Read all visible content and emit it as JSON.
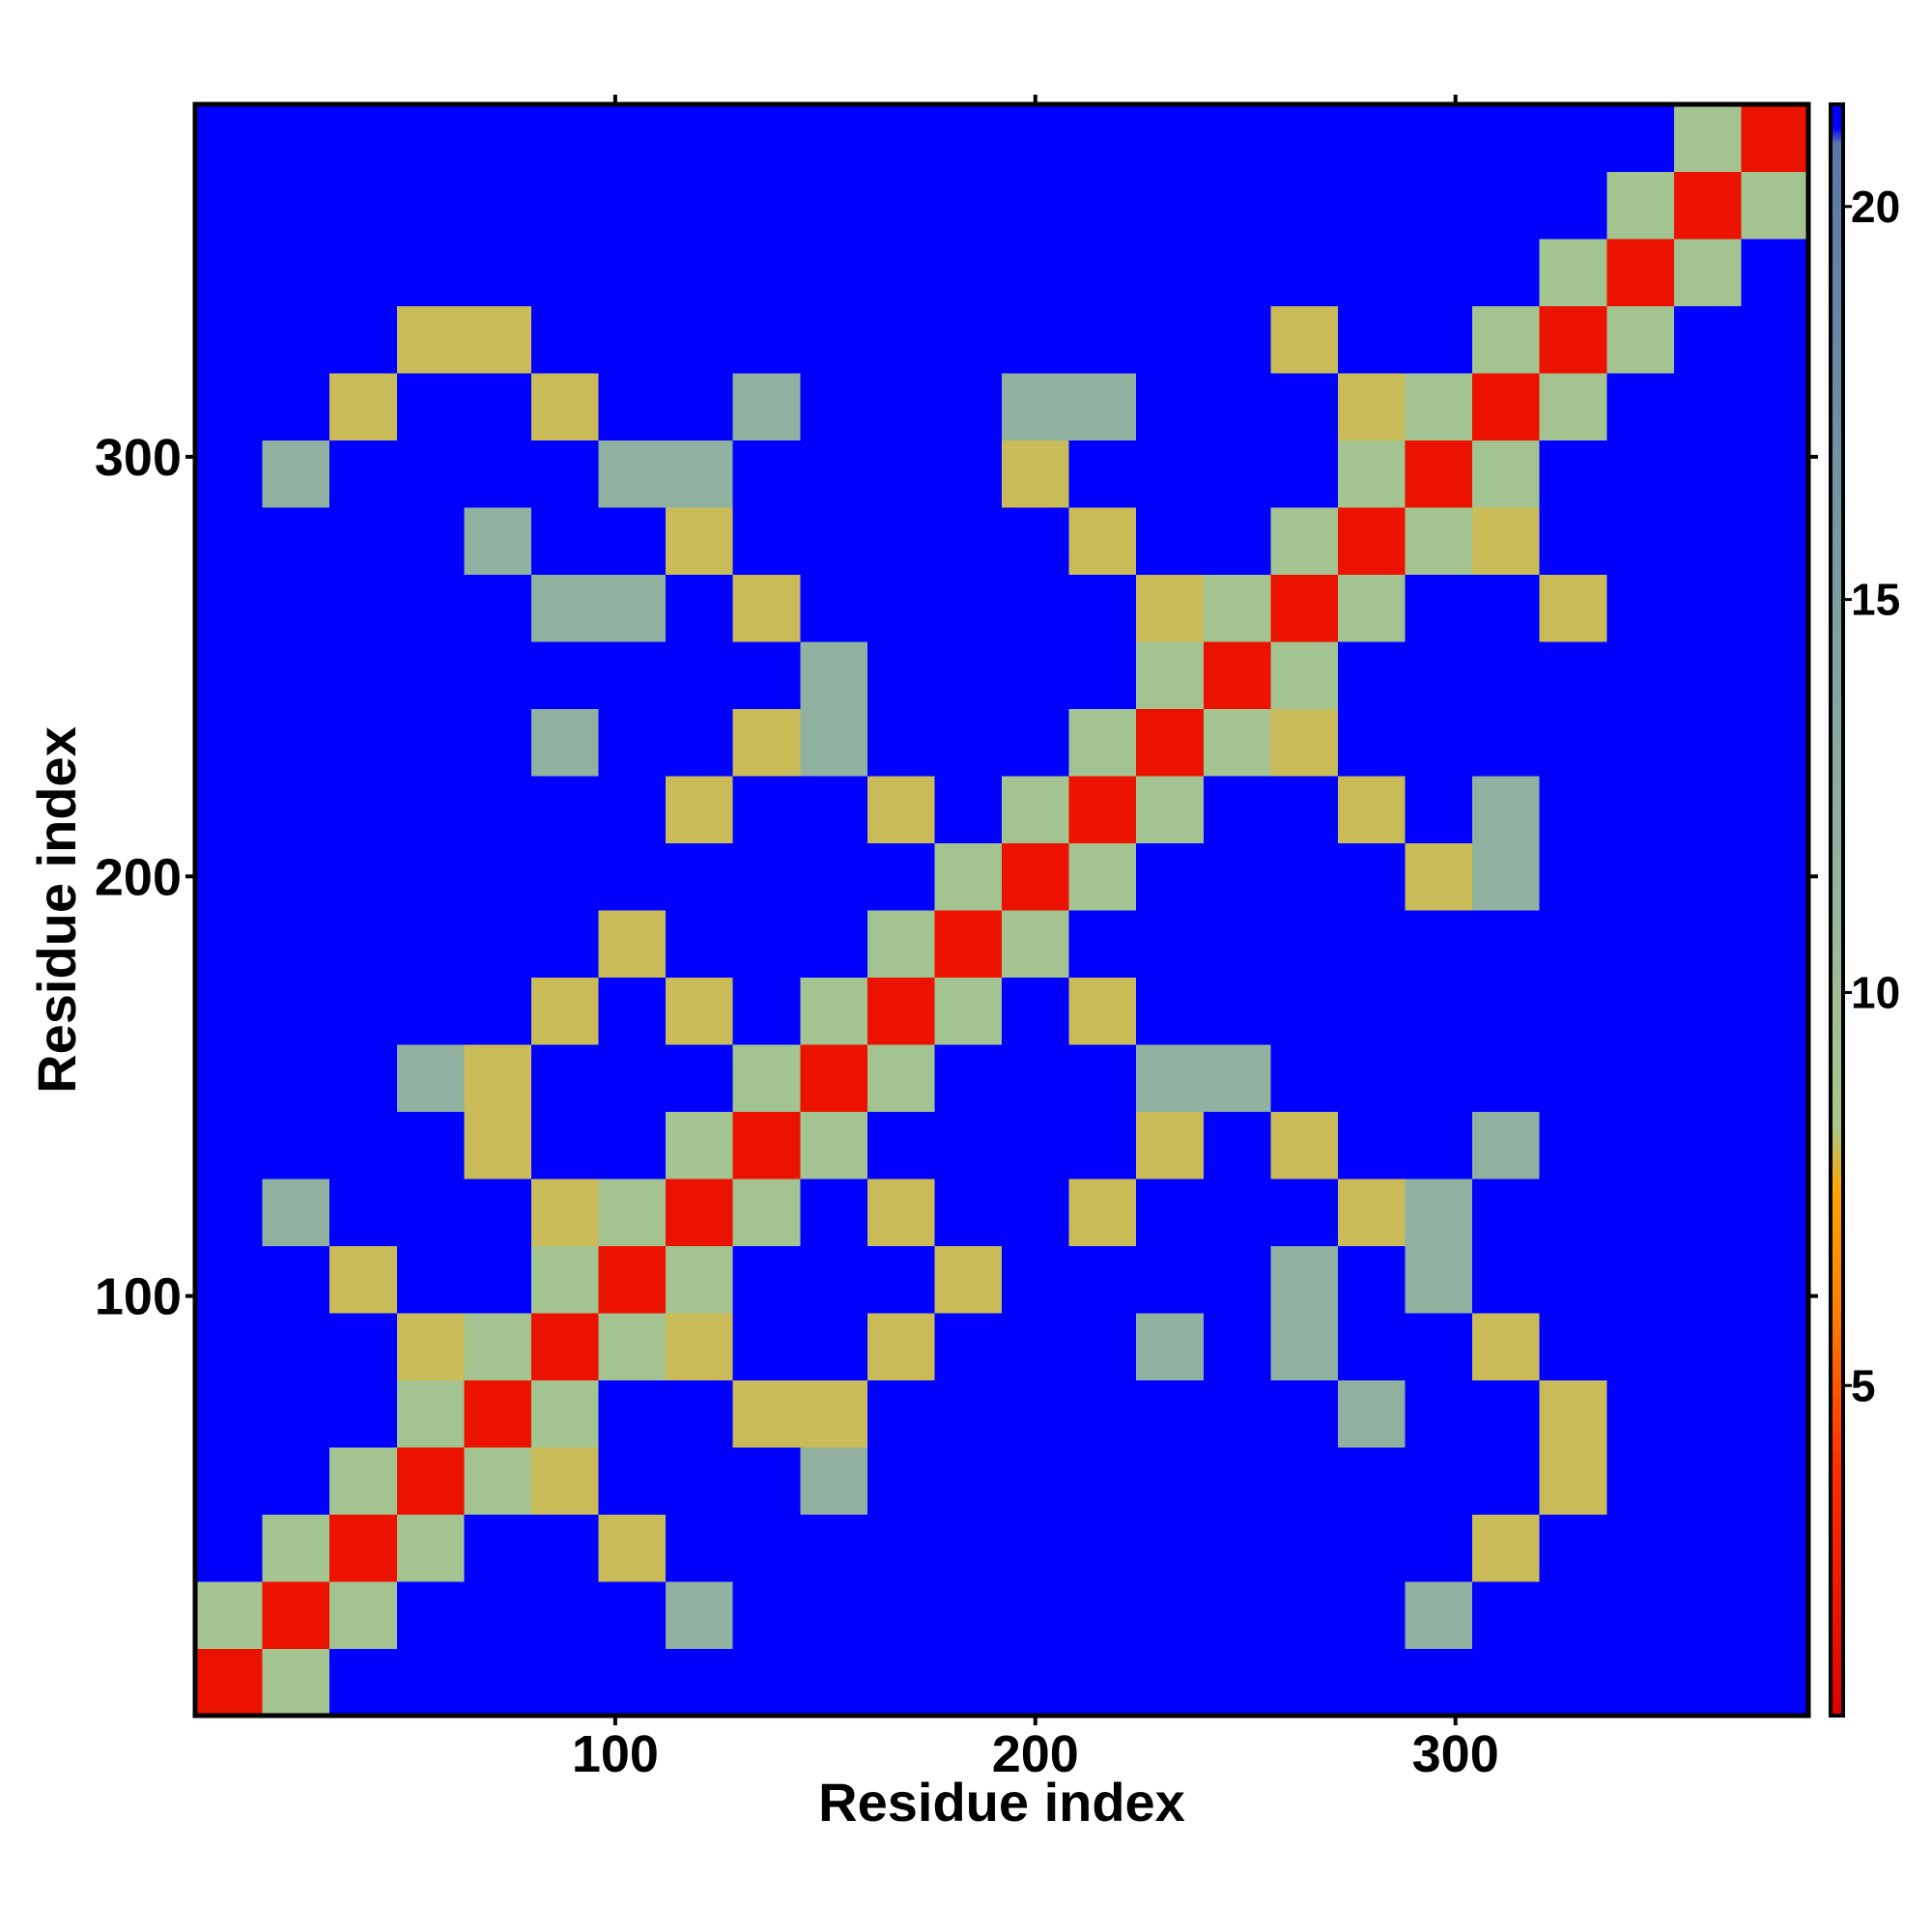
{
  "chart_data": {
    "type": "heatmap",
    "xlabel": "Residue index",
    "ylabel": "Residue index",
    "x": [
      8,
      24,
      40,
      56,
      72,
      88,
      104,
      120,
      136,
      152,
      168,
      184,
      200,
      216,
      232,
      248,
      264,
      280,
      296,
      312,
      328,
      344,
      360,
      376
    ],
    "y": [
      8,
      24,
      40,
      56,
      72,
      88,
      104,
      120,
      136,
      152,
      168,
      184,
      200,
      216,
      232,
      248,
      264,
      280,
      296,
      312,
      328,
      344,
      360,
      376
    ],
    "values": [
      [
        2,
        9,
        21,
        21,
        21,
        21,
        21,
        21,
        21,
        21,
        21,
        21,
        21,
        21,
        21,
        21,
        21,
        21,
        21,
        21,
        21,
        21,
        21,
        21
      ],
      [
        9,
        2,
        9,
        21,
        21,
        21,
        21,
        12,
        21,
        21,
        21,
        21,
        21,
        21,
        21,
        21,
        21,
        21,
        12,
        21,
        21,
        21,
        21,
        21
      ],
      [
        21,
        9,
        2,
        9,
        21,
        21,
        8,
        21,
        21,
        21,
        21,
        21,
        21,
        21,
        21,
        21,
        21,
        21,
        21,
        8,
        21,
        21,
        21,
        21
      ],
      [
        21,
        21,
        9,
        2,
        9,
        8,
        21,
        21,
        21,
        12,
        21,
        21,
        21,
        21,
        21,
        21,
        21,
        21,
        21,
        21,
        8,
        21,
        21,
        21
      ],
      [
        21,
        21,
        21,
        9,
        2,
        9,
        21,
        21,
        8,
        8,
        21,
        21,
        21,
        21,
        21,
        21,
        21,
        12,
        21,
        21,
        8,
        21,
        21,
        21
      ],
      [
        21,
        21,
        21,
        8,
        9,
        2,
        9,
        8,
        21,
        21,
        8,
        21,
        21,
        21,
        12,
        21,
        12,
        21,
        21,
        8,
        21,
        21,
        21,
        21
      ],
      [
        21,
        21,
        8,
        21,
        21,
        9,
        2,
        9,
        21,
        21,
        21,
        8,
        21,
        21,
        21,
        21,
        12,
        21,
        12,
        21,
        21,
        21,
        21,
        21
      ],
      [
        21,
        12,
        21,
        21,
        21,
        8,
        9,
        2,
        9,
        21,
        8,
        21,
        21,
        8,
        21,
        21,
        21,
        8,
        12,
        21,
        21,
        21,
        21,
        21
      ],
      [
        21,
        21,
        21,
        21,
        8,
        21,
        21,
        9,
        2,
        9,
        21,
        21,
        21,
        21,
        8,
        21,
        8,
        21,
        21,
        12,
        21,
        21,
        21,
        21
      ],
      [
        21,
        21,
        21,
        12,
        8,
        21,
        21,
        21,
        9,
        2,
        9,
        21,
        21,
        21,
        12,
        12,
        21,
        21,
        21,
        21,
        21,
        21,
        21,
        21
      ],
      [
        21,
        21,
        21,
        21,
        21,
        8,
        21,
        8,
        21,
        9,
        2,
        9,
        21,
        8,
        21,
        21,
        21,
        21,
        21,
        21,
        21,
        21,
        21,
        21
      ],
      [
        21,
        21,
        21,
        21,
        21,
        21,
        8,
        21,
        21,
        21,
        9,
        2,
        9,
        21,
        21,
        21,
        21,
        21,
        21,
        21,
        21,
        21,
        21,
        21
      ],
      [
        21,
        21,
        21,
        21,
        21,
        21,
        21,
        21,
        21,
        21,
        21,
        9,
        2,
        9,
        21,
        21,
        21,
        21,
        8,
        12,
        21,
        21,
        21,
        21
      ],
      [
        21,
        21,
        21,
        21,
        21,
        21,
        21,
        8,
        21,
        21,
        8,
        21,
        9,
        2,
        9,
        21,
        21,
        8,
        21,
        12,
        21,
        21,
        21,
        21
      ],
      [
        21,
        21,
        21,
        21,
        21,
        12,
        21,
        21,
        8,
        12,
        21,
        21,
        21,
        9,
        2,
        9,
        8,
        21,
        21,
        21,
        21,
        21,
        21,
        21
      ],
      [
        21,
        21,
        21,
        21,
        21,
        21,
        21,
        21,
        21,
        12,
        21,
        21,
        21,
        21,
        9,
        2,
        9,
        21,
        21,
        21,
        21,
        21,
        21,
        21
      ],
      [
        21,
        21,
        21,
        21,
        21,
        12,
        12,
        21,
        8,
        21,
        21,
        21,
        21,
        21,
        8,
        9,
        2,
        9,
        21,
        21,
        8,
        21,
        21,
        21
      ],
      [
        21,
        21,
        21,
        21,
        12,
        21,
        21,
        8,
        21,
        21,
        21,
        21,
        21,
        8,
        21,
        21,
        9,
        2,
        9,
        8,
        21,
        21,
        21,
        21
      ],
      [
        21,
        12,
        21,
        21,
        21,
        21,
        12,
        12,
        21,
        21,
        21,
        21,
        8,
        21,
        21,
        21,
        21,
        9,
        2,
        9,
        21,
        21,
        21,
        21
      ],
      [
        21,
        21,
        8,
        21,
        21,
        8,
        21,
        21,
        12,
        21,
        21,
        21,
        12,
        12,
        21,
        21,
        21,
        8,
        9,
        2,
        9,
        21,
        21,
        21
      ],
      [
        21,
        21,
        21,
        8,
        8,
        21,
        21,
        21,
        21,
        21,
        21,
        21,
        21,
        21,
        21,
        21,
        8,
        21,
        21,
        9,
        2,
        9,
        21,
        21
      ],
      [
        21,
        21,
        21,
        21,
        21,
        21,
        21,
        21,
        21,
        21,
        21,
        21,
        21,
        21,
        21,
        21,
        21,
        21,
        21,
        21,
        9,
        2,
        9,
        21
      ],
      [
        21,
        21,
        21,
        21,
        21,
        21,
        21,
        21,
        21,
        21,
        21,
        21,
        21,
        21,
        21,
        21,
        21,
        21,
        21,
        21,
        21,
        9,
        2,
        9
      ],
      [
        21,
        21,
        21,
        21,
        21,
        21,
        21,
        21,
        21,
        21,
        21,
        21,
        21,
        21,
        21,
        21,
        21,
        21,
        21,
        21,
        21,
        21,
        9,
        2
      ]
    ],
    "xlim": [
      0,
      384
    ],
    "ylim": [
      0,
      384
    ],
    "xticks": [
      100,
      200,
      300
    ],
    "yticks": [
      100,
      200,
      300
    ],
    "colorbar": {
      "clim": [
        0.8,
        21.3
      ],
      "ticks": [
        5,
        10,
        15,
        20
      ]
    },
    "colorscale": [
      {
        "value": 0.8,
        "color": "#e00000"
      },
      {
        "value": 4,
        "color": "#ff3000"
      },
      {
        "value": 6,
        "color": "#ff8000"
      },
      {
        "value": 7.5,
        "color": "#ffa500"
      },
      {
        "value": 8.3,
        "color": "#a8c88c"
      },
      {
        "value": 12,
        "color": "#90b0a0"
      },
      {
        "value": 20.8,
        "color": "#5878a8"
      },
      {
        "value": 21,
        "color": "#0000ff"
      },
      {
        "value": 21.3,
        "color": "#0000ff"
      }
    ]
  }
}
